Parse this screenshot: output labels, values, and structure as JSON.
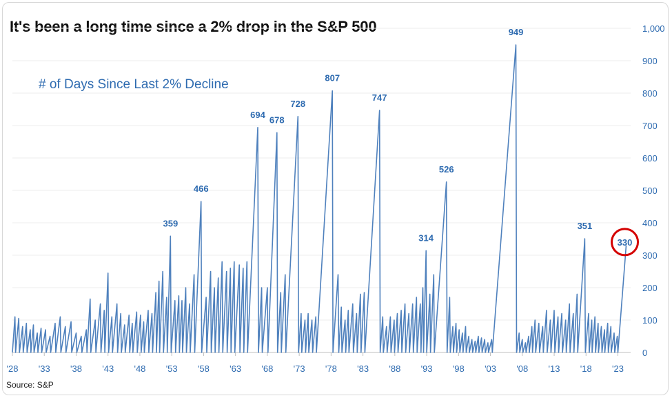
{
  "chart_data": {
    "type": "line",
    "title": "It's been a long time since a 2% drop in the S&P 500",
    "subtitle": "# of Days Since Last 2% Decline",
    "source": "Source: S&P",
    "ylim": [
      0,
      1000
    ],
    "y_ticks": [
      "0",
      "100",
      "200",
      "300",
      "400",
      "500",
      "600",
      "700",
      "800",
      "900",
      "1,000"
    ],
    "x_ticks": [
      {
        "label": "'28",
        "year": 1928
      },
      {
        "label": "'33",
        "year": 1933
      },
      {
        "label": "'38",
        "year": 1938
      },
      {
        "label": "'43",
        "year": 1943
      },
      {
        "label": "'48",
        "year": 1948
      },
      {
        "label": "'53",
        "year": 1953
      },
      {
        "label": "'58",
        "year": 1958
      },
      {
        "label": "'63",
        "year": 1963
      },
      {
        "label": "'68",
        "year": 1968
      },
      {
        "label": "'73",
        "year": 1973
      },
      {
        "label": "'78",
        "year": 1978
      },
      {
        "label": "'83",
        "year": 1983
      },
      {
        "label": "'88",
        "year": 1988
      },
      {
        "label": "'93",
        "year": 1993
      },
      {
        "label": "'98",
        "year": 1998
      },
      {
        "label": "'03",
        "year": 2003
      },
      {
        "label": "'08",
        "year": 2008
      },
      {
        "label": "'13",
        "year": 2013
      },
      {
        "label": "'18",
        "year": 2018
      },
      {
        "label": "'23",
        "year": 2023
      }
    ],
    "xlim": [
      1928,
      2025
    ],
    "series": [
      {
        "name": "# of Days Since Last 2% Decline",
        "color": "#4f81bd",
        "points": [
          [
            1928.0,
            0
          ],
          [
            1928.4,
            110
          ],
          [
            1928.5,
            0
          ],
          [
            1929.0,
            105
          ],
          [
            1929.1,
            0
          ],
          [
            1929.6,
            80
          ],
          [
            1929.7,
            0
          ],
          [
            1930.2,
            90
          ],
          [
            1930.3,
            0
          ],
          [
            1930.8,
            70
          ],
          [
            1930.9,
            0
          ],
          [
            1931.3,
            85
          ],
          [
            1931.4,
            0
          ],
          [
            1931.9,
            60
          ],
          [
            1932.0,
            0
          ],
          [
            1932.5,
            75
          ],
          [
            1932.6,
            0
          ],
          [
            1933.2,
            70
          ],
          [
            1933.3,
            0
          ],
          [
            1933.9,
            50
          ],
          [
            1934.0,
            0
          ],
          [
            1934.7,
            90
          ],
          [
            1934.8,
            0
          ],
          [
            1935.5,
            110
          ],
          [
            1935.6,
            0
          ],
          [
            1936.3,
            80
          ],
          [
            1936.4,
            0
          ],
          [
            1937.2,
            95
          ],
          [
            1937.3,
            0
          ],
          [
            1938.0,
            60
          ],
          [
            1938.1,
            0
          ],
          [
            1938.8,
            50
          ],
          [
            1938.9,
            0
          ],
          [
            1939.6,
            70
          ],
          [
            1939.7,
            0
          ],
          [
            1940.2,
            165
          ],
          [
            1940.3,
            0
          ],
          [
            1941.0,
            100
          ],
          [
            1941.1,
            0
          ],
          [
            1941.8,
            150
          ],
          [
            1941.9,
            0
          ],
          [
            1942.4,
            130
          ],
          [
            1942.5,
            0
          ],
          [
            1943.0,
            245
          ],
          [
            1943.1,
            0
          ],
          [
            1943.6,
            110
          ],
          [
            1943.7,
            0
          ],
          [
            1944.4,
            150
          ],
          [
            1944.5,
            0
          ],
          [
            1945.0,
            120
          ],
          [
            1945.1,
            0
          ],
          [
            1945.6,
            85
          ],
          [
            1945.7,
            0
          ],
          [
            1946.3,
            115
          ],
          [
            1946.4,
            0
          ],
          [
            1946.8,
            90
          ],
          [
            1946.9,
            0
          ],
          [
            1947.5,
            125
          ],
          [
            1947.6,
            0
          ],
          [
            1948.1,
            115
          ],
          [
            1948.2,
            0
          ],
          [
            1948.6,
            95
          ],
          [
            1948.7,
            0
          ],
          [
            1949.3,
            130
          ],
          [
            1949.4,
            0
          ],
          [
            1949.9,
            120
          ],
          [
            1950.0,
            0
          ],
          [
            1950.5,
            185
          ],
          [
            1950.6,
            0
          ],
          [
            1951.0,
            220
          ],
          [
            1951.1,
            0
          ],
          [
            1951.6,
            250
          ],
          [
            1951.7,
            0
          ],
          [
            1952.2,
            170
          ],
          [
            1952.3,
            0
          ],
          [
            1952.8,
            359
          ],
          [
            1952.9,
            0
          ],
          [
            1953.5,
            160
          ],
          [
            1953.6,
            0
          ],
          [
            1954.1,
            175
          ],
          [
            1954.2,
            0
          ],
          [
            1954.6,
            160
          ],
          [
            1954.7,
            0
          ],
          [
            1955.2,
            200
          ],
          [
            1955.3,
            0
          ],
          [
            1955.8,
            150
          ],
          [
            1955.9,
            0
          ],
          [
            1956.5,
            240
          ],
          [
            1956.6,
            0
          ],
          [
            1957.6,
            466
          ],
          [
            1957.7,
            0
          ],
          [
            1958.4,
            170
          ],
          [
            1958.5,
            0
          ],
          [
            1959.1,
            250
          ],
          [
            1959.2,
            0
          ],
          [
            1959.7,
            200
          ],
          [
            1959.8,
            0
          ],
          [
            1960.3,
            230
          ],
          [
            1960.4,
            0
          ],
          [
            1960.9,
            280
          ],
          [
            1961.0,
            0
          ],
          [
            1961.6,
            250
          ],
          [
            1961.7,
            0
          ],
          [
            1962.2,
            260
          ],
          [
            1962.3,
            0
          ],
          [
            1962.8,
            280
          ],
          [
            1962.9,
            0
          ],
          [
            1963.6,
            270
          ],
          [
            1963.7,
            0
          ],
          [
            1964.2,
            260
          ],
          [
            1964.3,
            0
          ],
          [
            1964.8,
            280
          ],
          [
            1964.9,
            0
          ],
          [
            1966.5,
            694
          ],
          [
            1966.6,
            0
          ],
          [
            1967.1,
            200
          ],
          [
            1967.2,
            0
          ],
          [
            1968.0,
            200
          ],
          [
            1968.1,
            0
          ],
          [
            1969.5,
            678
          ],
          [
            1969.6,
            0
          ],
          [
            1970.1,
            185
          ],
          [
            1970.2,
            0
          ],
          [
            1970.8,
            240
          ],
          [
            1970.9,
            0
          ],
          [
            1972.8,
            728
          ],
          [
            1972.9,
            0
          ],
          [
            1973.3,
            120
          ],
          [
            1973.4,
            0
          ],
          [
            1973.9,
            100
          ],
          [
            1974.0,
            0
          ],
          [
            1974.4,
            120
          ],
          [
            1974.5,
            0
          ],
          [
            1975.0,
            100
          ],
          [
            1975.1,
            0
          ],
          [
            1975.6,
            110
          ],
          [
            1975.7,
            0
          ],
          [
            1978.2,
            807
          ],
          [
            1978.3,
            0
          ],
          [
            1979.1,
            240
          ],
          [
            1979.2,
            0
          ],
          [
            1979.6,
            140
          ],
          [
            1979.7,
            0
          ],
          [
            1980.2,
            100
          ],
          [
            1980.3,
            0
          ],
          [
            1980.7,
            130
          ],
          [
            1980.8,
            0
          ],
          [
            1981.4,
            150
          ],
          [
            1981.5,
            0
          ],
          [
            1982.0,
            120
          ],
          [
            1982.1,
            0
          ],
          [
            1982.6,
            180
          ],
          [
            1982.7,
            0
          ],
          [
            1983.2,
            185
          ],
          [
            1983.3,
            0
          ],
          [
            1985.6,
            747
          ],
          [
            1985.7,
            0
          ],
          [
            1986.1,
            110
          ],
          [
            1986.2,
            0
          ],
          [
            1986.7,
            80
          ],
          [
            1986.8,
            0
          ],
          [
            1987.3,
            110
          ],
          [
            1987.4,
            0
          ],
          [
            1987.9,
            100
          ],
          [
            1987.95,
            0
          ],
          [
            1988.4,
            120
          ],
          [
            1988.5,
            0
          ],
          [
            1989.0,
            130
          ],
          [
            1989.1,
            0
          ],
          [
            1989.6,
            150
          ],
          [
            1989.7,
            0
          ],
          [
            1990.2,
            120
          ],
          [
            1990.3,
            0
          ],
          [
            1990.8,
            150
          ],
          [
            1990.9,
            0
          ],
          [
            1991.4,
            170
          ],
          [
            1991.5,
            0
          ],
          [
            1992.0,
            150
          ],
          [
            1992.1,
            0
          ],
          [
            1992.4,
            200
          ],
          [
            1992.5,
            0
          ],
          [
            1992.9,
            314
          ],
          [
            1993.0,
            0
          ],
          [
            1993.5,
            180
          ],
          [
            1993.6,
            0
          ],
          [
            1994.1,
            240
          ],
          [
            1994.2,
            0
          ],
          [
            1996.1,
            526
          ],
          [
            1996.2,
            0
          ],
          [
            1996.6,
            170
          ],
          [
            1996.7,
            0
          ],
          [
            1997.1,
            80
          ],
          [
            1997.2,
            0
          ],
          [
            1997.6,
            90
          ],
          [
            1997.7,
            0
          ],
          [
            1998.1,
            70
          ],
          [
            1998.2,
            0
          ],
          [
            1998.6,
            60
          ],
          [
            1998.7,
            0
          ],
          [
            1999.1,
            80
          ],
          [
            1999.2,
            0
          ],
          [
            1999.6,
            50
          ],
          [
            1999.7,
            0
          ],
          [
            2000.1,
            40
          ],
          [
            2000.2,
            0
          ],
          [
            2000.6,
            35
          ],
          [
            2000.7,
            0
          ],
          [
            2001.1,
            50
          ],
          [
            2001.2,
            0
          ],
          [
            2001.6,
            45
          ],
          [
            2001.7,
            0
          ],
          [
            2002.1,
            40
          ],
          [
            2002.2,
            0
          ],
          [
            2002.6,
            30
          ],
          [
            2002.7,
            0
          ],
          [
            2003.2,
            40
          ],
          [
            2003.3,
            0
          ],
          [
            2007.0,
            949
          ],
          [
            2007.1,
            0
          ],
          [
            2007.5,
            60
          ],
          [
            2007.6,
            0
          ],
          [
            2008.0,
            40
          ],
          [
            2008.1,
            0
          ],
          [
            2008.5,
            30
          ],
          [
            2008.6,
            0
          ],
          [
            2009.0,
            50
          ],
          [
            2009.1,
            0
          ],
          [
            2009.5,
            80
          ],
          [
            2009.6,
            0
          ],
          [
            2010.0,
            100
          ],
          [
            2010.1,
            0
          ],
          [
            2010.6,
            90
          ],
          [
            2010.7,
            0
          ],
          [
            2011.2,
            80
          ],
          [
            2011.3,
            0
          ],
          [
            2011.8,
            130
          ],
          [
            2011.9,
            0
          ],
          [
            2012.4,
            100
          ],
          [
            2012.5,
            0
          ],
          [
            2013.0,
            130
          ],
          [
            2013.1,
            0
          ],
          [
            2013.6,
            110
          ],
          [
            2013.7,
            0
          ],
          [
            2014.2,
            120
          ],
          [
            2014.3,
            0
          ],
          [
            2014.8,
            100
          ],
          [
            2014.9,
            0
          ],
          [
            2015.4,
            150
          ],
          [
            2015.5,
            0
          ],
          [
            2016.0,
            120
          ],
          [
            2016.1,
            0
          ],
          [
            2016.6,
            180
          ],
          [
            2016.7,
            0
          ],
          [
            2017.8,
            351
          ],
          [
            2017.9,
            0
          ],
          [
            2018.4,
            120
          ],
          [
            2018.5,
            0
          ],
          [
            2018.9,
            100
          ],
          [
            2018.95,
            0
          ],
          [
            2019.4,
            110
          ],
          [
            2019.5,
            0
          ],
          [
            2019.9,
            90
          ],
          [
            2019.95,
            0
          ],
          [
            2020.4,
            80
          ],
          [
            2020.5,
            0
          ],
          [
            2020.9,
            70
          ],
          [
            2020.95,
            0
          ],
          [
            2021.4,
            90
          ],
          [
            2021.5,
            0
          ],
          [
            2021.9,
            80
          ],
          [
            2021.95,
            0
          ],
          [
            2022.4,
            60
          ],
          [
            2022.5,
            0
          ],
          [
            2022.9,
            50
          ],
          [
            2023.0,
            0
          ],
          [
            2024.3,
            330
          ]
        ]
      }
    ],
    "peak_labels": [
      {
        "label": "359",
        "year": 1952.8,
        "value": 359
      },
      {
        "label": "466",
        "year": 1957.6,
        "value": 466
      },
      {
        "label": "694",
        "year": 1966.5,
        "value": 694
      },
      {
        "label": "678",
        "year": 1969.5,
        "value": 678
      },
      {
        "label": "728",
        "year": 1972.8,
        "value": 728
      },
      {
        "label": "807",
        "year": 1978.2,
        "value": 807
      },
      {
        "label": "747",
        "year": 1985.6,
        "value": 747
      },
      {
        "label": "314",
        "year": 1992.9,
        "value": 314
      },
      {
        "label": "526",
        "year": 1996.1,
        "value": 526
      },
      {
        "label": "949",
        "year": 2007.0,
        "value": 949
      },
      {
        "label": "351",
        "year": 2017.8,
        "value": 351
      },
      {
        "label": "330",
        "year": 2024.3,
        "value": 330,
        "highlight": true
      }
    ],
    "highlight_color": "#d40000",
    "grid": true,
    "axis_color": "#2e6bb0"
  }
}
